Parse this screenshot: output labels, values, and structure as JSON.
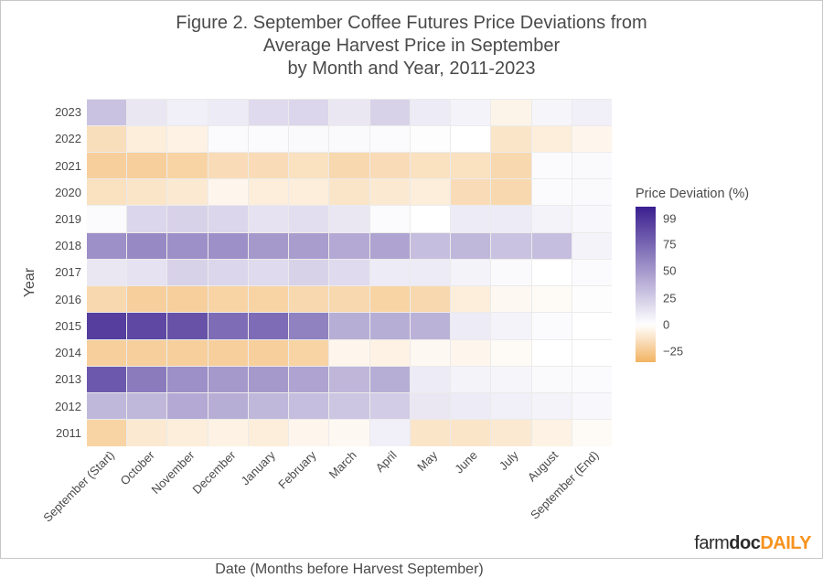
{
  "title_lines": [
    "Figure 2. September Coffee Futures Price Deviations from",
    "Average Harvest Price in September",
    "by Month and Year, 2011-2023"
  ],
  "y_axis_title": "Year",
  "x_axis_title": "Date (Months before Harvest September)",
  "years": [
    "2023",
    "2022",
    "2021",
    "2020",
    "2019",
    "2018",
    "2017",
    "2016",
    "2015",
    "2014",
    "2013",
    "2012",
    "2011"
  ],
  "months": [
    "September (Start)",
    "October",
    "November",
    "December",
    "January",
    "February",
    "March",
    "April",
    "May",
    "June",
    "July",
    "August",
    "September (End)"
  ],
  "legend": {
    "title": "Price Deviation (%)",
    "min": -35,
    "max": 110,
    "ticks": [
      {
        "label": "99",
        "value": 99
      },
      {
        "label": "75",
        "value": 75
      },
      {
        "label": "50",
        "value": 50
      },
      {
        "label": "25",
        "value": 25
      },
      {
        "label": "0",
        "value": 0
      },
      {
        "label": "−25",
        "value": -25
      }
    ],
    "colors": {
      "low": "#f2b362",
      "mid": "#ffffff",
      "high": "#3a1f8f"
    }
  },
  "heatmap_type": "heatmap",
  "background_color": "#ffffff",
  "grid_bg": "#ebebeb",
  "values": [
    [
      30,
      12,
      8,
      10,
      18,
      20,
      12,
      22,
      10,
      6,
      -5,
      5,
      8
    ],
    [
      -15,
      -8,
      -6,
      2,
      2,
      3,
      3,
      2,
      1,
      0,
      -12,
      -8,
      -4
    ],
    [
      -22,
      -22,
      -20,
      -16,
      -16,
      -14,
      -18,
      -16,
      -14,
      -14,
      -18,
      2,
      3
    ],
    [
      -14,
      -12,
      -10,
      -4,
      -8,
      -8,
      -12,
      -10,
      -8,
      -16,
      -18,
      2,
      3
    ],
    [
      2,
      20,
      22,
      20,
      14,
      16,
      12,
      2,
      0,
      10,
      10,
      6,
      4
    ],
    [
      55,
      58,
      55,
      55,
      50,
      48,
      42,
      45,
      32,
      35,
      30,
      32,
      6
    ],
    [
      12,
      14,
      22,
      20,
      18,
      22,
      18,
      10,
      10,
      6,
      3,
      0,
      2
    ],
    [
      -18,
      -22,
      -22,
      -20,
      -20,
      -18,
      -18,
      -20,
      -18,
      -8,
      -3,
      -2,
      1
    ],
    [
      95,
      90,
      85,
      72,
      72,
      62,
      40,
      40,
      38,
      10,
      6,
      2,
      0
    ],
    [
      -22,
      -22,
      -22,
      -22,
      -22,
      -20,
      -4,
      -6,
      -3,
      -4,
      -2,
      0,
      0
    ],
    [
      82,
      65,
      55,
      50,
      50,
      45,
      36,
      40,
      10,
      6,
      5,
      3,
      2
    ],
    [
      35,
      35,
      42,
      40,
      35,
      32,
      28,
      25,
      12,
      10,
      8,
      6,
      4
    ],
    [
      -20,
      -10,
      -8,
      -6,
      -8,
      -4,
      -3,
      8,
      -12,
      -12,
      -10,
      -6,
      -2
    ]
  ],
  "logo": {
    "part1": "farm",
    "part2": "doc",
    "part3": "DAILY"
  }
}
